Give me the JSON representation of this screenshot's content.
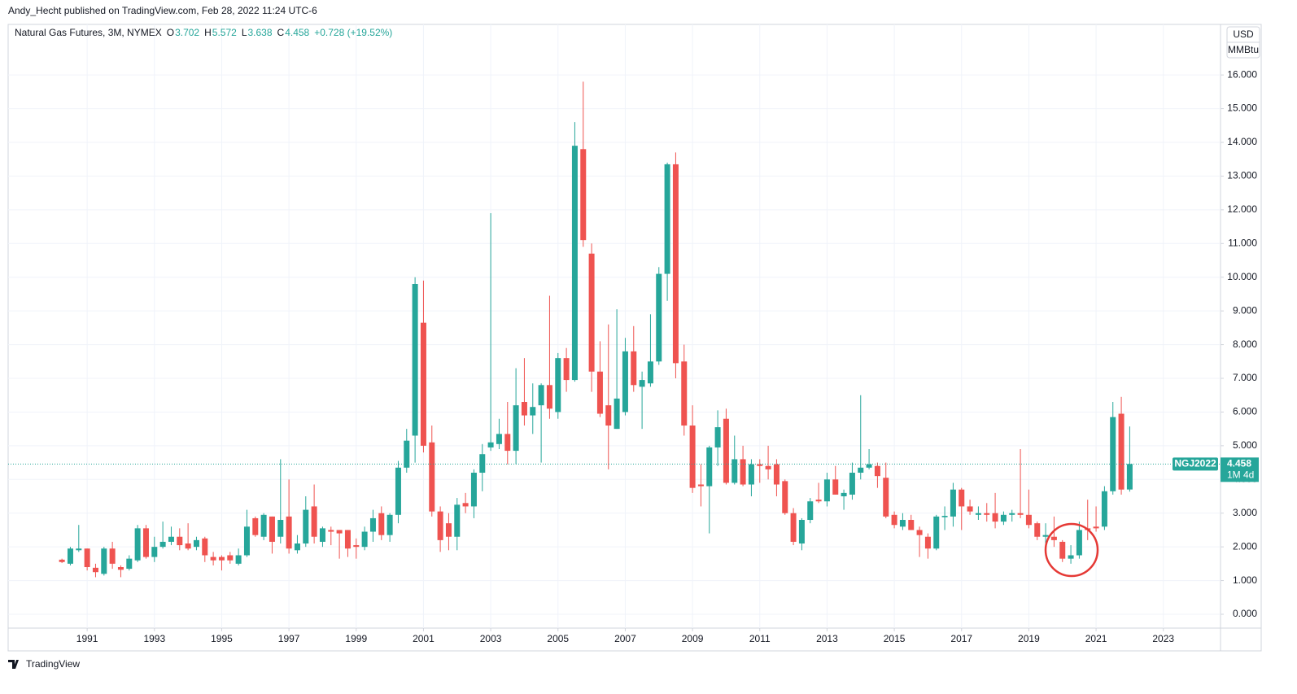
{
  "header": {
    "publisher": "Andy_Hecht published on TradingView.com, Feb 28, 2022 11:24 UTC-6"
  },
  "footer": {
    "brand": "TradingView"
  },
  "chart_data": {
    "type": "candlestick",
    "title": "Natural Gas Futures, 3M, NYMEX",
    "legend": {
      "open_key": "O",
      "high_key": "H",
      "low_key": "L",
      "close_key": "C",
      "change": "+0.728 (+19.52%)"
    },
    "currency": "USD",
    "unit": "MMBtu",
    "price_tag": {
      "symbol": "NGJ2022",
      "countdown": "1M 4d"
    },
    "up_color": "#26a69a",
    "down_color": "#ef5350",
    "grid": true,
    "xlim": [
      1988.65,
      2024.7
    ],
    "xticks": [
      1991,
      1993,
      1995,
      1997,
      1999,
      2001,
      2003,
      2005,
      2007,
      2009,
      2011,
      2013,
      2015,
      2017,
      2019,
      2021,
      2023
    ],
    "ylim": [
      -0.41,
      17.5
    ],
    "yticks": [
      {
        "value": 0,
        "label": "0.000"
      },
      {
        "value": 1,
        "label": "1.000"
      },
      {
        "value": 2,
        "label": "2.000"
      },
      {
        "value": 3,
        "label": "3.000"
      },
      {
        "value": 4,
        "label": "4.000"
      },
      {
        "value": 5,
        "label": "5.000"
      },
      {
        "value": 6,
        "label": "6.000"
      },
      {
        "value": 7,
        "label": "7.000"
      },
      {
        "value": 8,
        "label": "8.000"
      },
      {
        "value": 9,
        "label": "9.000"
      },
      {
        "value": 10,
        "label": "10.000"
      },
      {
        "value": 11,
        "label": "11.000"
      },
      {
        "value": 12,
        "label": "12.000"
      },
      {
        "value": 13,
        "label": "13.000"
      },
      {
        "value": 14,
        "label": "14.000"
      },
      {
        "value": 15,
        "label": "15.000"
      },
      {
        "value": 16,
        "label": "16.000"
      }
    ],
    "candles": [
      {
        "x": 1990.25,
        "open": 1.62,
        "high": 1.65,
        "low": 1.52,
        "close": 1.55
      },
      {
        "x": 1990.5,
        "open": 1.5,
        "high": 2.0,
        "low": 1.45,
        "close": 1.95
      },
      {
        "x": 1990.75,
        "open": 1.9,
        "high": 2.65,
        "low": 1.85,
        "close": 1.95
      },
      {
        "x": 1991,
        "open": 1.95,
        "high": 1.95,
        "low": 1.3,
        "close": 1.4
      },
      {
        "x": 1991.25,
        "open": 1.38,
        "high": 1.5,
        "low": 1.1,
        "close": 1.25
      },
      {
        "x": 1991.5,
        "open": 1.2,
        "high": 2.0,
        "low": 1.15,
        "close": 1.95
      },
      {
        "x": 1991.75,
        "open": 1.95,
        "high": 2.15,
        "low": 1.35,
        "close": 1.5
      },
      {
        "x": 1992,
        "open": 1.4,
        "high": 1.45,
        "low": 1.1,
        "close": 1.32
      },
      {
        "x": 1992.25,
        "open": 1.35,
        "high": 1.75,
        "low": 1.3,
        "close": 1.65
      },
      {
        "x": 1992.5,
        "open": 1.6,
        "high": 2.65,
        "low": 1.55,
        "close": 2.55
      },
      {
        "x": 1992.75,
        "open": 2.55,
        "high": 2.65,
        "low": 1.65,
        "close": 1.7
      },
      {
        "x": 1993,
        "open": 1.7,
        "high": 2.3,
        "low": 1.55,
        "close": 2.0
      },
      {
        "x": 1993.25,
        "open": 2.0,
        "high": 2.75,
        "low": 1.95,
        "close": 2.15
      },
      {
        "x": 1993.5,
        "open": 2.15,
        "high": 2.6,
        "low": 2.05,
        "close": 2.3
      },
      {
        "x": 1993.75,
        "open": 2.3,
        "high": 2.55,
        "low": 1.9,
        "close": 2.05
      },
      {
        "x": 1994,
        "open": 2.1,
        "high": 2.7,
        "low": 1.9,
        "close": 1.95
      },
      {
        "x": 1994.25,
        "open": 2.0,
        "high": 2.3,
        "low": 1.9,
        "close": 2.2
      },
      {
        "x": 1994.5,
        "open": 2.25,
        "high": 2.3,
        "low": 1.55,
        "close": 1.75
      },
      {
        "x": 1994.75,
        "open": 1.7,
        "high": 1.85,
        "low": 1.45,
        "close": 1.6
      },
      {
        "x": 1995,
        "open": 1.7,
        "high": 1.75,
        "low": 1.3,
        "close": 1.6
      },
      {
        "x": 1995.25,
        "open": 1.75,
        "high": 1.85,
        "low": 1.5,
        "close": 1.6
      },
      {
        "x": 1995.5,
        "open": 1.5,
        "high": 1.95,
        "low": 1.45,
        "close": 1.75
      },
      {
        "x": 1995.75,
        "open": 1.75,
        "high": 3.1,
        "low": 1.7,
        "close": 2.6
      },
      {
        "x": 1996,
        "open": 2.85,
        "high": 2.9,
        "low": 2.3,
        "close": 2.35
      },
      {
        "x": 1996.25,
        "open": 2.3,
        "high": 3.0,
        "low": 2.2,
        "close": 2.95
      },
      {
        "x": 1996.5,
        "open": 2.9,
        "high": 2.9,
        "low": 1.8,
        "close": 2.15
      },
      {
        "x": 1996.75,
        "open": 2.3,
        "high": 4.6,
        "low": 2.1,
        "close": 2.8
      },
      {
        "x": 1997,
        "open": 2.9,
        "high": 4.0,
        "low": 1.8,
        "close": 1.95
      },
      {
        "x": 1997.25,
        "open": 1.9,
        "high": 2.35,
        "low": 1.8,
        "close": 2.1
      },
      {
        "x": 1997.5,
        "open": 2.1,
        "high": 3.5,
        "low": 2.0,
        "close": 3.1
      },
      {
        "x": 1997.75,
        "open": 3.2,
        "high": 3.85,
        "low": 2.1,
        "close": 2.3
      },
      {
        "x": 1998,
        "open": 2.15,
        "high": 2.6,
        "low": 2.0,
        "close": 2.55
      },
      {
        "x": 1998.25,
        "open": 2.5,
        "high": 2.6,
        "low": 2.05,
        "close": 2.45
      },
      {
        "x": 1998.5,
        "open": 2.5,
        "high": 2.5,
        "low": 1.65,
        "close": 2.4
      },
      {
        "x": 1998.75,
        "open": 2.5,
        "high": 2.5,
        "low": 1.7,
        "close": 1.95
      },
      {
        "x": 1999,
        "open": 2.05,
        "high": 2.25,
        "low": 1.65,
        "close": 2.0
      },
      {
        "x": 1999.25,
        "open": 2.0,
        "high": 2.6,
        "low": 1.9,
        "close": 2.45
      },
      {
        "x": 1999.5,
        "open": 2.45,
        "high": 3.1,
        "low": 2.15,
        "close": 2.85
      },
      {
        "x": 1999.75,
        "open": 3.0,
        "high": 3.2,
        "low": 2.2,
        "close": 2.35
      },
      {
        "x": 2000,
        "open": 2.35,
        "high": 3.0,
        "low": 2.15,
        "close": 2.95
      },
      {
        "x": 2000.25,
        "open": 2.95,
        "high": 4.55,
        "low": 2.7,
        "close": 4.35
      },
      {
        "x": 2000.5,
        "open": 4.35,
        "high": 5.5,
        "low": 4.2,
        "close": 5.15
      },
      {
        "x": 2000.75,
        "open": 5.3,
        "high": 10.0,
        "low": 4.5,
        "close": 9.8
      },
      {
        "x": 2001,
        "open": 8.65,
        "high": 9.9,
        "low": 4.8,
        "close": 5.0
      },
      {
        "x": 2001.25,
        "open": 5.1,
        "high": 5.6,
        "low": 2.9,
        "close": 3.05
      },
      {
        "x": 2001.5,
        "open": 3.05,
        "high": 3.2,
        "low": 1.85,
        "close": 2.2
      },
      {
        "x": 2001.75,
        "open": 2.7,
        "high": 3.0,
        "low": 1.9,
        "close": 2.3
      },
      {
        "x": 2002,
        "open": 2.3,
        "high": 3.45,
        "low": 1.9,
        "close": 3.25
      },
      {
        "x": 2002.25,
        "open": 3.3,
        "high": 3.6,
        "low": 3.0,
        "close": 3.2
      },
      {
        "x": 2002.5,
        "open": 3.2,
        "high": 4.3,
        "low": 2.85,
        "close": 4.2
      },
      {
        "x": 2002.75,
        "open": 4.2,
        "high": 5.05,
        "low": 3.65,
        "close": 4.75
      },
      {
        "x": 2003,
        "open": 4.95,
        "high": 11.9,
        "low": 4.85,
        "close": 5.1
      },
      {
        "x": 2003.25,
        "open": 5.05,
        "high": 5.8,
        "low": 4.9,
        "close": 5.35
      },
      {
        "x": 2003.5,
        "open": 5.35,
        "high": 6.3,
        "low": 4.45,
        "close": 4.85
      },
      {
        "x": 2003.75,
        "open": 4.85,
        "high": 7.3,
        "low": 4.45,
        "close": 6.2
      },
      {
        "x": 2004,
        "open": 6.3,
        "high": 7.6,
        "low": 5.6,
        "close": 5.9
      },
      {
        "x": 2004.25,
        "open": 5.9,
        "high": 6.85,
        "low": 5.35,
        "close": 6.15
      },
      {
        "x": 2004.5,
        "open": 6.2,
        "high": 6.85,
        "low": 4.5,
        "close": 6.8
      },
      {
        "x": 2004.75,
        "open": 6.8,
        "high": 9.45,
        "low": 5.8,
        "close": 6.1
      },
      {
        "x": 2005,
        "open": 6.0,
        "high": 7.75,
        "low": 5.8,
        "close": 7.6
      },
      {
        "x": 2005.25,
        "open": 7.6,
        "high": 7.9,
        "low": 6.6,
        "close": 6.95
      },
      {
        "x": 2005.5,
        "open": 6.95,
        "high": 14.6,
        "low": 6.9,
        "close": 13.9
      },
      {
        "x": 2005.75,
        "open": 13.8,
        "high": 15.8,
        "low": 10.9,
        "close": 11.1
      },
      {
        "x": 2006,
        "open": 10.7,
        "high": 11.0,
        "low": 6.6,
        "close": 7.2
      },
      {
        "x": 2006.25,
        "open": 7.2,
        "high": 8.1,
        "low": 5.85,
        "close": 5.95
      },
      {
        "x": 2006.5,
        "open": 6.2,
        "high": 8.6,
        "low": 4.3,
        "close": 5.6
      },
      {
        "x": 2006.75,
        "open": 5.5,
        "high": 9.05,
        "low": 5.5,
        "close": 6.4
      },
      {
        "x": 2007,
        "open": 6.0,
        "high": 8.2,
        "low": 5.9,
        "close": 7.8
      },
      {
        "x": 2007.25,
        "open": 7.8,
        "high": 8.55,
        "low": 6.6,
        "close": 6.8
      },
      {
        "x": 2007.5,
        "open": 6.75,
        "high": 7.2,
        "low": 5.5,
        "close": 6.95
      },
      {
        "x": 2007.75,
        "open": 6.85,
        "high": 8.9,
        "low": 6.75,
        "close": 7.5
      },
      {
        "x": 2008,
        "open": 7.5,
        "high": 10.3,
        "low": 7.4,
        "close": 10.1
      },
      {
        "x": 2008.25,
        "open": 10.1,
        "high": 13.4,
        "low": 9.3,
        "close": 13.35
      },
      {
        "x": 2008.5,
        "open": 13.35,
        "high": 13.7,
        "low": 7.0,
        "close": 7.45
      },
      {
        "x": 2008.75,
        "open": 7.5,
        "high": 8.0,
        "low": 5.3,
        "close": 5.6
      },
      {
        "x": 2009,
        "open": 5.6,
        "high": 6.2,
        "low": 3.6,
        "close": 3.75
      },
      {
        "x": 2009.25,
        "open": 3.85,
        "high": 4.45,
        "low": 3.2,
        "close": 3.8
      },
      {
        "x": 2009.5,
        "open": 3.8,
        "high": 5.0,
        "low": 2.4,
        "close": 4.95
      },
      {
        "x": 2009.75,
        "open": 4.95,
        "high": 6.05,
        "low": 4.4,
        "close": 5.55
      },
      {
        "x": 2010,
        "open": 5.8,
        "high": 6.1,
        "low": 3.85,
        "close": 3.9
      },
      {
        "x": 2010.25,
        "open": 3.9,
        "high": 5.3,
        "low": 3.85,
        "close": 4.6
      },
      {
        "x": 2010.5,
        "open": 4.6,
        "high": 5.0,
        "low": 3.8,
        "close": 3.85
      },
      {
        "x": 2010.75,
        "open": 3.85,
        "high": 4.6,
        "low": 3.5,
        "close": 4.45
      },
      {
        "x": 2011,
        "open": 4.45,
        "high": 4.6,
        "low": 3.9,
        "close": 4.4
      },
      {
        "x": 2011.25,
        "open": 4.4,
        "high": 5.0,
        "low": 4.0,
        "close": 4.3
      },
      {
        "x": 2011.5,
        "open": 4.45,
        "high": 4.6,
        "low": 3.5,
        "close": 3.85
      },
      {
        "x": 2011.75,
        "open": 3.95,
        "high": 4.0,
        "low": 2.95,
        "close": 3.0
      },
      {
        "x": 2012,
        "open": 3.0,
        "high": 3.15,
        "low": 2.05,
        "close": 2.15
      },
      {
        "x": 2012.25,
        "open": 2.1,
        "high": 2.85,
        "low": 1.9,
        "close": 2.8
      },
      {
        "x": 2012.5,
        "open": 2.8,
        "high": 3.45,
        "low": 2.7,
        "close": 3.35
      },
      {
        "x": 2012.75,
        "open": 3.4,
        "high": 3.9,
        "low": 3.3,
        "close": 3.35
      },
      {
        "x": 2013,
        "open": 3.35,
        "high": 4.2,
        "low": 3.2,
        "close": 4.0
      },
      {
        "x": 2013.25,
        "open": 4.0,
        "high": 4.4,
        "low": 3.55,
        "close": 3.55
      },
      {
        "x": 2013.5,
        "open": 3.5,
        "high": 3.7,
        "low": 3.1,
        "close": 3.6
      },
      {
        "x": 2013.75,
        "open": 3.55,
        "high": 4.5,
        "low": 3.4,
        "close": 4.2
      },
      {
        "x": 2014,
        "open": 4.2,
        "high": 6.5,
        "low": 4.0,
        "close": 4.35
      },
      {
        "x": 2014.25,
        "open": 4.35,
        "high": 4.9,
        "low": 4.3,
        "close": 4.45
      },
      {
        "x": 2014.5,
        "open": 4.4,
        "high": 4.5,
        "low": 3.75,
        "close": 4.1
      },
      {
        "x": 2014.75,
        "open": 4.05,
        "high": 4.5,
        "low": 2.85,
        "close": 2.9
      },
      {
        "x": 2015,
        "open": 2.95,
        "high": 3.05,
        "low": 2.55,
        "close": 2.65
      },
      {
        "x": 2015.25,
        "open": 2.6,
        "high": 3.0,
        "low": 2.5,
        "close": 2.8
      },
      {
        "x": 2015.5,
        "open": 2.8,
        "high": 2.95,
        "low": 2.5,
        "close": 2.5
      },
      {
        "x": 2015.75,
        "open": 2.5,
        "high": 2.6,
        "low": 1.7,
        "close": 2.35
      },
      {
        "x": 2016,
        "open": 2.3,
        "high": 2.4,
        "low": 1.65,
        "close": 1.95
      },
      {
        "x": 2016.25,
        "open": 1.95,
        "high": 2.95,
        "low": 1.9,
        "close": 2.9
      },
      {
        "x": 2016.5,
        "open": 2.88,
        "high": 3.2,
        "low": 2.5,
        "close": 2.92
      },
      {
        "x": 2016.75,
        "open": 2.9,
        "high": 3.9,
        "low": 2.6,
        "close": 3.7
      },
      {
        "x": 2017,
        "open": 3.7,
        "high": 3.75,
        "low": 2.5,
        "close": 3.2
      },
      {
        "x": 2017.25,
        "open": 3.2,
        "high": 3.4,
        "low": 2.95,
        "close": 3.05
      },
      {
        "x": 2017.5,
        "open": 2.95,
        "high": 3.2,
        "low": 2.8,
        "close": 3.0
      },
      {
        "x": 2017.75,
        "open": 3.0,
        "high": 3.3,
        "low": 2.75,
        "close": 2.95
      },
      {
        "x": 2018,
        "open": 3.0,
        "high": 3.6,
        "low": 2.55,
        "close": 2.75
      },
      {
        "x": 2018.25,
        "open": 2.75,
        "high": 3.05,
        "low": 2.65,
        "close": 2.95
      },
      {
        "x": 2018.5,
        "open": 2.95,
        "high": 3.1,
        "low": 2.75,
        "close": 3.0
      },
      {
        "x": 2018.75,
        "open": 3.0,
        "high": 4.9,
        "low": 2.85,
        "close": 2.95
      },
      {
        "x": 2019,
        "open": 2.95,
        "high": 3.7,
        "low": 2.55,
        "close": 2.65
      },
      {
        "x": 2019.25,
        "open": 2.7,
        "high": 2.75,
        "low": 2.2,
        "close": 2.3
      },
      {
        "x": 2019.5,
        "open": 2.3,
        "high": 2.7,
        "low": 2.1,
        "close": 2.35
      },
      {
        "x": 2019.75,
        "open": 2.3,
        "high": 2.9,
        "low": 2.0,
        "close": 2.2
      },
      {
        "x": 2020,
        "open": 2.15,
        "high": 2.2,
        "low": 1.55,
        "close": 1.65
      },
      {
        "x": 2020.25,
        "open": 1.65,
        "high": 2.05,
        "low": 1.5,
        "close": 1.75
      },
      {
        "x": 2020.5,
        "open": 1.75,
        "high": 2.75,
        "low": 1.65,
        "close": 2.5
      },
      {
        "x": 2020.75,
        "open": 2.55,
        "high": 3.4,
        "low": 2.2,
        "close": 2.5
      },
      {
        "x": 2021,
        "open": 2.6,
        "high": 3.2,
        "low": 2.45,
        "close": 2.55
      },
      {
        "x": 2021.25,
        "open": 2.6,
        "high": 3.8,
        "low": 2.5,
        "close": 3.65
      },
      {
        "x": 2021.5,
        "open": 3.65,
        "high": 6.3,
        "low": 3.55,
        "close": 5.85
      },
      {
        "x": 2021.75,
        "open": 5.95,
        "high": 6.45,
        "low": 3.55,
        "close": 3.7
      },
      {
        "x": 2022,
        "open": 3.702,
        "high": 5.572,
        "low": 3.638,
        "close": 4.458
      }
    ]
  }
}
